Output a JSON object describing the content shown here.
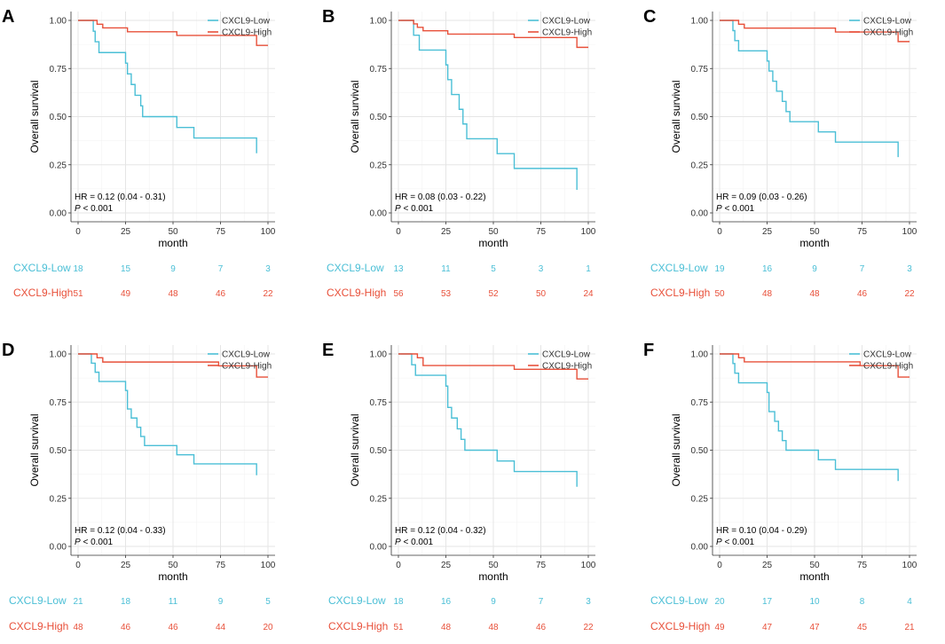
{
  "figure": {
    "background": "#ffffff"
  },
  "colors": {
    "low": "#4bbfd6",
    "high": "#e8503a",
    "grid": "#e5e5e5",
    "axis": "#333333"
  },
  "chart_data": [
    {
      "panel_label": "A",
      "type": "line",
      "subtype": "kaplan-meier",
      "ylabel": "Overall survival",
      "xlabel": "month",
      "xlim": [
        0,
        100
      ],
      "ylim": [
        0,
        1
      ],
      "xticks": [
        "0",
        "25",
        "50",
        "75",
        "100"
      ],
      "yticks": [
        "0.00",
        "0.25",
        "0.50",
        "0.75",
        "1.00"
      ],
      "legend_position": "top-right",
      "grid": true,
      "series": [
        {
          "name": "CXCL9-Low",
          "color": "#4bbfd6",
          "x": [
            0,
            7,
            8,
            9,
            11,
            25,
            26,
            28,
            30,
            33,
            34,
            37,
            52,
            61,
            94
          ],
          "y": [
            1.0,
            1.0,
            0.944,
            0.889,
            0.833,
            0.778,
            0.722,
            0.667,
            0.611,
            0.556,
            0.5,
            0.5,
            0.444,
            0.389,
            0.389
          ],
          "end_drop": 0.31
        },
        {
          "name": "CXCL9-High",
          "color": "#e8503a",
          "x": [
            0,
            10,
            13,
            26,
            52,
            61,
            94,
            100
          ],
          "y": [
            1.0,
            0.98,
            0.961,
            0.941,
            0.922,
            0.922,
            0.87,
            0.87
          ]
        }
      ],
      "annotation": {
        "hr": "HR = 0.12 (0.04 -  0.31)",
        "p_label": "P",
        "p_value": " < 0.001"
      },
      "risk_table": {
        "rows": [
          {
            "name": "CXCL9-Low",
            "counts": [
              "18",
              "15",
              "9",
              "7",
              "3"
            ]
          },
          {
            "name": "CXCL9-High",
            "counts": [
              "51",
              "49",
              "48",
              "46",
              "22"
            ]
          }
        ]
      }
    },
    {
      "panel_label": "B",
      "type": "line",
      "subtype": "kaplan-meier",
      "ylabel": "Overall survival",
      "xlabel": "month",
      "xlim": [
        0,
        100
      ],
      "ylim": [
        0,
        1
      ],
      "xticks": [
        "0",
        "25",
        "50",
        "75",
        "100"
      ],
      "yticks": [
        "0.00",
        "0.25",
        "0.50",
        "0.75",
        "1.00"
      ],
      "legend_position": "top-right",
      "grid": true,
      "series": [
        {
          "name": "CXCL9-Low",
          "color": "#4bbfd6",
          "x": [
            0,
            8,
            11,
            25,
            26,
            28,
            32,
            34,
            36,
            52,
            61,
            94
          ],
          "y": [
            1.0,
            0.923,
            0.846,
            0.769,
            0.692,
            0.615,
            0.538,
            0.462,
            0.385,
            0.308,
            0.231,
            0.231
          ],
          "end_drop": 0.12
        },
        {
          "name": "CXCL9-High",
          "color": "#e8503a",
          "x": [
            0,
            8,
            10,
            13,
            26,
            61,
            94,
            100
          ],
          "y": [
            1.0,
            0.982,
            0.964,
            0.946,
            0.929,
            0.911,
            0.86,
            0.86
          ]
        }
      ],
      "annotation": {
        "hr": "HR = 0.08 (0.03 -  0.22)",
        "p_label": "P",
        "p_value": " < 0.001"
      },
      "risk_table": {
        "rows": [
          {
            "name": "CXCL9-Low",
            "counts": [
              "13",
              "11",
              "5",
              "3",
              "1"
            ]
          },
          {
            "name": "CXCL9-High",
            "counts": [
              "56",
              "53",
              "52",
              "50",
              "24"
            ]
          }
        ]
      }
    },
    {
      "panel_label": "C",
      "type": "line",
      "subtype": "kaplan-meier",
      "ylabel": "Overall survival",
      "xlabel": "month",
      "xlim": [
        0,
        100
      ],
      "ylim": [
        0,
        1
      ],
      "xticks": [
        "0",
        "25",
        "50",
        "75",
        "100"
      ],
      "yticks": [
        "0.00",
        "0.25",
        "0.50",
        "0.75",
        "1.00"
      ],
      "legend_position": "top-right",
      "grid": true,
      "series": [
        {
          "name": "CXCL9-Low",
          "color": "#4bbfd6",
          "x": [
            0,
            7,
            8,
            10,
            25,
            26,
            28,
            30,
            33,
            35,
            37,
            52,
            61,
            94
          ],
          "y": [
            1.0,
            0.947,
            0.895,
            0.842,
            0.789,
            0.737,
            0.684,
            0.632,
            0.579,
            0.526,
            0.474,
            0.421,
            0.368,
            0.295
          ],
          "end_drop": 0.29
        },
        {
          "name": "CXCL9-High",
          "color": "#e8503a",
          "x": [
            0,
            10,
            13,
            61,
            94,
            100
          ],
          "y": [
            1.0,
            0.98,
            0.96,
            0.94,
            0.89,
            0.89
          ]
        }
      ],
      "annotation": {
        "hr": "HR = 0.09 (0.03 -  0.26)",
        "p_label": "P",
        "p_value": " < 0.001"
      },
      "risk_table": {
        "rows": [
          {
            "name": "CXCL9-Low",
            "counts": [
              "19",
              "16",
              "9",
              "7",
              "3"
            ]
          },
          {
            "name": "CXCL9-High",
            "counts": [
              "50",
              "48",
              "48",
              "46",
              "22"
            ]
          }
        ]
      }
    },
    {
      "panel_label": "D",
      "type": "line",
      "subtype": "kaplan-meier",
      "ylabel": "Overall survival",
      "xlabel": "month",
      "xlim": [
        0,
        100
      ],
      "ylim": [
        0,
        1
      ],
      "xticks": [
        "0",
        "25",
        "50",
        "75",
        "100"
      ],
      "yticks": [
        "0.00",
        "0.25",
        "0.50",
        "0.75",
        "1.00"
      ],
      "legend_position": "top-right",
      "grid": true,
      "series": [
        {
          "name": "CXCL9-Low",
          "color": "#4bbfd6",
          "x": [
            0,
            7,
            9,
            11,
            25,
            26,
            28,
            31,
            33,
            35,
            52,
            61,
            94
          ],
          "y": [
            1.0,
            0.952,
            0.905,
            0.857,
            0.81,
            0.714,
            0.667,
            0.619,
            0.571,
            0.524,
            0.476,
            0.429,
            0.429
          ],
          "end_drop": 0.37
        },
        {
          "name": "CXCL9-High",
          "color": "#e8503a",
          "x": [
            0,
            10,
            13,
            74,
            94,
            100
          ],
          "y": [
            1.0,
            0.98,
            0.958,
            0.938,
            0.88,
            0.88
          ]
        }
      ],
      "annotation": {
        "hr": "HR = 0.12 (0.04 -  0.33)",
        "p_label": "P",
        "p_value": " < 0.001"
      },
      "risk_table": {
        "rows": [
          {
            "name": "CXCL9-Low",
            "counts": [
              "21",
              "18",
              "11",
              "9",
              "5"
            ]
          },
          {
            "name": "CXCL9-High",
            "counts": [
              "48",
              "46",
              "46",
              "44",
              "20"
            ]
          }
        ]
      }
    },
    {
      "panel_label": "E",
      "type": "line",
      "subtype": "kaplan-meier",
      "ylabel": "Overall survival",
      "xlabel": "month",
      "xlim": [
        0,
        100
      ],
      "ylim": [
        0,
        1
      ],
      "xticks": [
        "0",
        "25",
        "50",
        "75",
        "100"
      ],
      "yticks": [
        "0.00",
        "0.25",
        "0.50",
        "0.75",
        "1.00"
      ],
      "legend_position": "top-right",
      "grid": true,
      "series": [
        {
          "name": "CXCL9-Low",
          "color": "#4bbfd6",
          "x": [
            0,
            7,
            9,
            25,
            26,
            28,
            31,
            33,
            35,
            52,
            61,
            94
          ],
          "y": [
            1.0,
            0.944,
            0.889,
            0.833,
            0.722,
            0.667,
            0.611,
            0.556,
            0.5,
            0.444,
            0.389,
            0.389
          ],
          "end_drop": 0.31
        },
        {
          "name": "CXCL9-High",
          "color": "#e8503a",
          "x": [
            0,
            10,
            13,
            61,
            94,
            100
          ],
          "y": [
            1.0,
            0.98,
            0.94,
            0.92,
            0.87,
            0.87
          ]
        }
      ],
      "annotation": {
        "hr": "HR = 0.12 (0.04 -  0.32)",
        "p_label": "P",
        "p_value": " < 0.001"
      },
      "risk_table": {
        "rows": [
          {
            "name": "CXCL9-Low",
            "counts": [
              "18",
              "16",
              "9",
              "7",
              "3"
            ]
          },
          {
            "name": "CXCL9-High",
            "counts": [
              "51",
              "48",
              "48",
              "46",
              "22"
            ]
          }
        ]
      }
    },
    {
      "panel_label": "F",
      "type": "line",
      "subtype": "kaplan-meier",
      "ylabel": "Overall survival",
      "xlabel": "month",
      "xlim": [
        0,
        100
      ],
      "ylim": [
        0,
        1
      ],
      "xticks": [
        "0",
        "25",
        "50",
        "75",
        "100"
      ],
      "yticks": [
        "0.00",
        "0.25",
        "0.50",
        "0.75",
        "1.00"
      ],
      "legend_position": "top-right",
      "grid": true,
      "series": [
        {
          "name": "CXCL9-Low",
          "color": "#4bbfd6",
          "x": [
            0,
            7,
            8,
            10,
            25,
            26,
            29,
            31,
            33,
            35,
            52,
            61,
            94
          ],
          "y": [
            1.0,
            0.95,
            0.9,
            0.85,
            0.8,
            0.7,
            0.65,
            0.6,
            0.55,
            0.5,
            0.45,
            0.4,
            0.4
          ],
          "end_drop": 0.34
        },
        {
          "name": "CXCL9-High",
          "color": "#e8503a",
          "x": [
            0,
            10,
            13,
            74,
            94,
            100
          ],
          "y": [
            1.0,
            0.98,
            0.959,
            0.939,
            0.88,
            0.88
          ]
        }
      ],
      "annotation": {
        "hr": "HR = 0.10 (0.04 -  0.29)",
        "p_label": "P",
        "p_value": " < 0.001"
      },
      "risk_table": {
        "rows": [
          {
            "name": "CXCL9-Low",
            "counts": [
              "20",
              "17",
              "10",
              "8",
              "4"
            ]
          },
          {
            "name": "CXCL9-High",
            "counts": [
              "49",
              "47",
              "47",
              "45",
              "21"
            ]
          }
        ]
      }
    }
  ]
}
